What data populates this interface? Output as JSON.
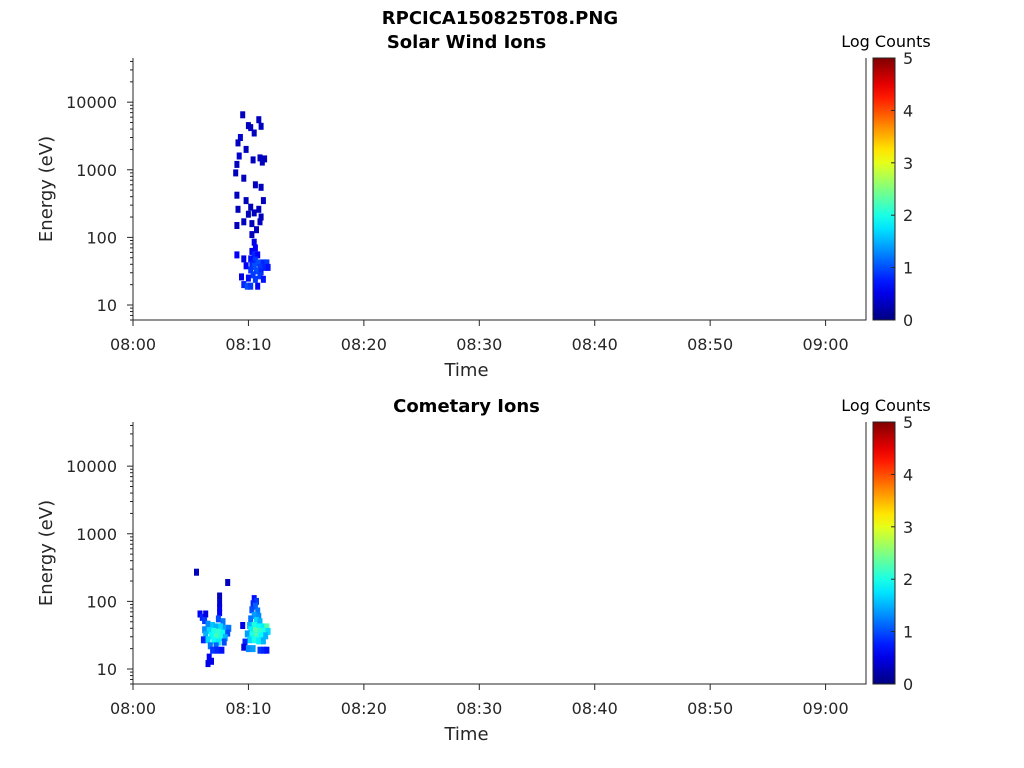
{
  "figure_title": "RPCICA150825T08.PNG",
  "chart_data": [
    {
      "type": "heatmap",
      "title": "Solar Wind Ions",
      "xlabel": "Time",
      "ylabel": "Energy (eV)",
      "x_ticks": [
        "08:00",
        "08:10",
        "08:20",
        "08:30",
        "08:40",
        "08:50",
        "09:00"
      ],
      "y_ticks": [
        "10",
        "100",
        "1000",
        "10000"
      ],
      "y_scale": "log",
      "x_range_minutes": [
        0,
        63.5
      ],
      "y_range_eV": [
        6,
        45000
      ],
      "colorbar": {
        "label": "Log Counts",
        "ticks": [
          "0",
          "1",
          "2",
          "3",
          "4",
          "5"
        ],
        "range": [
          0,
          5
        ],
        "colormap": "jet"
      },
      "cells": [
        [
          9.5,
          6500,
          0.3
        ],
        [
          9.3,
          3000,
          0.4
        ],
        [
          9.1,
          2500,
          0.3
        ],
        [
          9.2,
          1600,
          0.4
        ],
        [
          9.0,
          1200,
          0.3
        ],
        [
          8.9,
          900,
          0.3
        ],
        [
          10.0,
          4500,
          0.3
        ],
        [
          10.9,
          5500,
          0.3
        ],
        [
          11.1,
          4400,
          0.3
        ],
        [
          10.2,
          4200,
          0.3
        ],
        [
          10.5,
          3500,
          0.3
        ],
        [
          9.8,
          2000,
          0.3
        ],
        [
          10.4,
          1400,
          0.3
        ],
        [
          11.0,
          1500,
          0.3
        ],
        [
          11.4,
          1450,
          0.3
        ],
        [
          11.2,
          1300,
          0.3
        ],
        [
          9.6,
          750,
          0.3
        ],
        [
          10.6,
          600,
          0.3
        ],
        [
          11.1,
          550,
          0.3
        ],
        [
          9.0,
          420,
          0.3
        ],
        [
          9.8,
          350,
          0.3
        ],
        [
          11.3,
          350,
          0.3
        ],
        [
          10.2,
          280,
          0.3
        ],
        [
          10.9,
          260,
          0.3
        ],
        [
          9.1,
          260,
          0.3
        ],
        [
          10.5,
          230,
          0.3
        ],
        [
          10.0,
          220,
          0.3
        ],
        [
          11.1,
          200,
          0.3
        ],
        [
          9.6,
          170,
          0.3
        ],
        [
          10.3,
          160,
          0.3
        ],
        [
          11.0,
          170,
          0.3
        ],
        [
          9.0,
          150,
          0.3
        ],
        [
          10.7,
          130,
          0.3
        ],
        [
          10.3,
          110,
          0.3
        ],
        [
          10.5,
          85,
          0.5
        ],
        [
          10.6,
          70,
          0.6
        ],
        [
          10.3,
          62,
          0.5
        ],
        [
          9.0,
          55,
          0.6
        ],
        [
          10.5,
          55,
          0.8
        ],
        [
          10.8,
          55,
          0.6
        ],
        [
          9.6,
          48,
          0.5
        ],
        [
          10.2,
          48,
          0.7
        ],
        [
          10.6,
          46,
          0.9
        ],
        [
          10.9,
          42,
          1.0
        ],
        [
          11.3,
          42,
          0.8
        ],
        [
          11.6,
          42,
          0.9
        ],
        [
          10.3,
          40,
          0.8
        ],
        [
          9.8,
          38,
          0.6
        ],
        [
          10.5,
          37,
          1.0
        ],
        [
          11.0,
          36,
          0.9
        ],
        [
          11.4,
          36,
          0.8
        ],
        [
          11.7,
          36,
          0.7
        ],
        [
          10.2,
          33,
          0.9
        ],
        [
          10.7,
          32,
          1.0
        ],
        [
          11.1,
          31,
          0.8
        ],
        [
          10.4,
          28,
          0.9
        ],
        [
          11.0,
          27,
          0.9
        ],
        [
          9.4,
          26,
          0.5
        ],
        [
          10.0,
          25,
          0.7
        ],
        [
          10.6,
          24,
          0.9
        ],
        [
          11.3,
          24,
          0.7
        ],
        [
          9.6,
          20,
          0.8
        ],
        [
          9.9,
          19,
          1.0
        ],
        [
          10.2,
          19,
          0.9
        ],
        [
          10.8,
          19,
          0.6
        ]
      ]
    },
    {
      "type": "heatmap",
      "title": "Cometary Ions",
      "xlabel": "Time",
      "ylabel": "Energy (eV)",
      "x_ticks": [
        "08:00",
        "08:10",
        "08:20",
        "08:30",
        "08:40",
        "08:50",
        "09:00"
      ],
      "y_ticks": [
        "10",
        "100",
        "1000",
        "10000"
      ],
      "y_scale": "log",
      "x_range_minutes": [
        0,
        63.5
      ],
      "y_range_eV": [
        6,
        45000
      ],
      "colorbar": {
        "label": "Log Counts",
        "ticks": [
          "0",
          "1",
          "2",
          "3",
          "4",
          "5"
        ],
        "range": [
          0,
          5
        ],
        "colormap": "jet"
      },
      "cells": [
        [
          5.5,
          270,
          0.3
        ],
        [
          8.2,
          190,
          0.3
        ],
        [
          7.5,
          120,
          0.3
        ],
        [
          7.5,
          95,
          0.4
        ],
        [
          7.5,
          80,
          0.5
        ],
        [
          7.5,
          68,
          0.6
        ],
        [
          5.8,
          65,
          0.6
        ],
        [
          6.0,
          58,
          0.8
        ],
        [
          6.3,
          65,
          0.5
        ],
        [
          6.2,
          52,
          0.9
        ],
        [
          7.4,
          55,
          1.0
        ],
        [
          7.8,
          50,
          1.2
        ],
        [
          6.5,
          46,
          1.3
        ],
        [
          6.9,
          44,
          1.6
        ],
        [
          7.2,
          42,
          1.5
        ],
        [
          7.6,
          42,
          1.7
        ],
        [
          8.0,
          40,
          1.4
        ],
        [
          8.3,
          40,
          1.2
        ],
        [
          6.2,
          38,
          1.3
        ],
        [
          6.6,
          37,
          1.7
        ],
        [
          7.0,
          36,
          2.0
        ],
        [
          7.4,
          35,
          2.1
        ],
        [
          7.8,
          34,
          1.9
        ],
        [
          8.2,
          34,
          1.0
        ],
        [
          6.3,
          32,
          1.5
        ],
        [
          6.8,
          31,
          1.9
        ],
        [
          7.2,
          30,
          2.2
        ],
        [
          7.6,
          29,
          2.0
        ],
        [
          8.0,
          29,
          1.5
        ],
        [
          6.1,
          27,
          0.8
        ],
        [
          6.5,
          27,
          1.7
        ],
        [
          7.0,
          26,
          1.9
        ],
        [
          7.4,
          25,
          1.8
        ],
        [
          7.9,
          25,
          1.0
        ],
        [
          6.7,
          22,
          1.2
        ],
        [
          7.2,
          22,
          1.1
        ],
        [
          6.9,
          19,
          0.9
        ],
        [
          7.3,
          19,
          0.8
        ],
        [
          7.7,
          19,
          0.7
        ],
        [
          6.6,
          15,
          0.6
        ],
        [
          6.8,
          13,
          0.5
        ],
        [
          6.5,
          12,
          0.5
        ],
        [
          10.5,
          110,
          0.7
        ],
        [
          10.7,
          100,
          0.9
        ],
        [
          10.4,
          92,
          0.8
        ],
        [
          10.6,
          85,
          1.1
        ],
        [
          10.3,
          75,
          1.0
        ],
        [
          10.8,
          72,
          1.2
        ],
        [
          10.5,
          62,
          1.4
        ],
        [
          10.9,
          60,
          1.3
        ],
        [
          10.2,
          55,
          1.2
        ],
        [
          10.7,
          52,
          1.7
        ],
        [
          11.0,
          50,
          1.5
        ],
        [
          9.5,
          44,
          0.5
        ],
        [
          10.1,
          44,
          1.5
        ],
        [
          10.5,
          44,
          2.0
        ],
        [
          10.9,
          42,
          1.9
        ],
        [
          11.3,
          42,
          1.8
        ],
        [
          11.6,
          42,
          2.3
        ],
        [
          10.2,
          38,
          1.8
        ],
        [
          10.6,
          37,
          2.3
        ],
        [
          11.0,
          36,
          2.1
        ],
        [
          11.4,
          36,
          2.0
        ],
        [
          11.7,
          36,
          1.7
        ],
        [
          9.9,
          33,
          1.4
        ],
        [
          10.3,
          32,
          2.0
        ],
        [
          10.7,
          31,
          2.2
        ],
        [
          11.1,
          31,
          1.9
        ],
        [
          11.5,
          31,
          1.5
        ],
        [
          10.1,
          27,
          1.7
        ],
        [
          10.5,
          27,
          2.0
        ],
        [
          10.9,
          26,
          1.8
        ],
        [
          11.3,
          26,
          1.5
        ],
        [
          9.7,
          25,
          0.8
        ],
        [
          9.6,
          21,
          0.5
        ],
        [
          10.0,
          20,
          1.3
        ],
        [
          10.4,
          20,
          1.4
        ],
        [
          11.0,
          19,
          0.9
        ],
        [
          11.3,
          19,
          0.8
        ],
        [
          11.6,
          19,
          0.7
        ]
      ]
    }
  ]
}
